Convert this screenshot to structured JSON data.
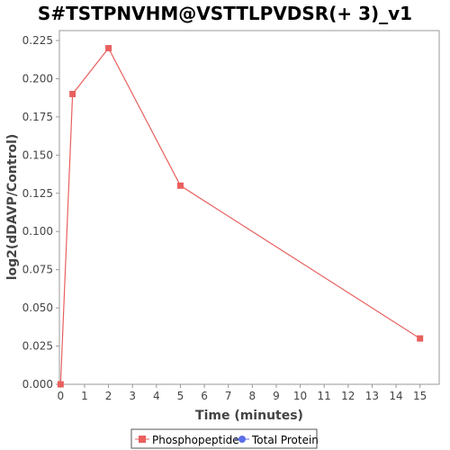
{
  "chart_data": {
    "type": "line",
    "title": "S#TSTPNVHM@VSTTLPVDSR(+ 3)_v1",
    "xlabel": "Time (minutes)",
    "ylabel": "log2(dDAVP/Control)",
    "xlim": [
      -0.05,
      15.8
    ],
    "ylim": [
      0.0,
      0.2315
    ],
    "x_ticks": [
      0,
      1,
      2,
      3,
      4,
      5,
      6,
      7,
      8,
      9,
      10,
      11,
      12,
      13,
      14,
      15
    ],
    "y_ticks": [
      "0.000",
      "0.025",
      "0.050",
      "0.075",
      "0.100",
      "0.125",
      "0.150",
      "0.175",
      "0.200",
      "0.225"
    ],
    "grid": false,
    "legend_position": "bottom",
    "series": [
      {
        "name": "Phosphopeptide",
        "color": "#e8605e",
        "marker": "square",
        "x": [
          0,
          0.5,
          2,
          5,
          15
        ],
        "y": [
          0.0,
          0.19,
          0.22,
          0.13,
          0.03
        ]
      },
      {
        "name": "Total Protein",
        "color": "#5b6fe8",
        "marker": "circle",
        "x": [],
        "y": []
      }
    ]
  }
}
